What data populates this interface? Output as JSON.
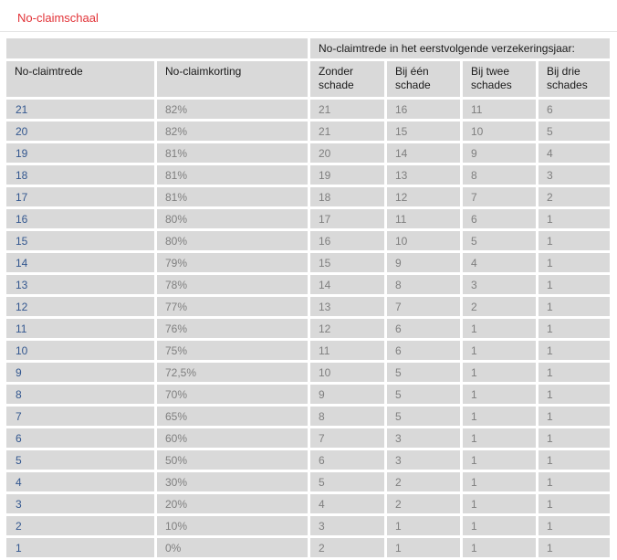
{
  "page": {
    "title": "No-claimschaal"
  },
  "colors": {
    "title_red": "#e23338",
    "trede_blue": "#33578f",
    "value_gray": "#7f7f7f",
    "header_text": "#1a1a1a",
    "cell_bg": "#d9d9d9"
  },
  "table": {
    "span_header": "No-claimtrede in het eerstvolgende verzekeringsjaar:",
    "columns": [
      "No-claimtrede",
      "No-claimkorting",
      "Zonder schade",
      "Bij één schade",
      "Bij twee schades",
      "Bij drie schades"
    ],
    "rows": [
      [
        "21",
        "82%",
        "21",
        "16",
        "11",
        "6"
      ],
      [
        "20",
        "82%",
        "21",
        "15",
        "10",
        "5"
      ],
      [
        "19",
        "81%",
        "20",
        "14",
        "9",
        "4"
      ],
      [
        "18",
        "81%",
        "19",
        "13",
        "8",
        "3"
      ],
      [
        "17",
        "81%",
        "18",
        "12",
        "7",
        "2"
      ],
      [
        "16",
        "80%",
        "17",
        "11",
        "6",
        "1"
      ],
      [
        "15",
        "80%",
        "16",
        "10",
        "5",
        "1"
      ],
      [
        "14",
        "79%",
        "15",
        "9",
        "4",
        "1"
      ],
      [
        "13",
        "78%",
        "14",
        "8",
        "3",
        "1"
      ],
      [
        "12",
        "77%",
        "13",
        "7",
        "2",
        "1"
      ],
      [
        "11",
        "76%",
        "12",
        "6",
        "1",
        "1"
      ],
      [
        "10",
        "75%",
        "11",
        "6",
        "1",
        "1"
      ],
      [
        "9",
        "72,5%",
        "10",
        "5",
        "1",
        "1"
      ],
      [
        "8",
        "70%",
        "9",
        "5",
        "1",
        "1"
      ],
      [
        "7",
        "65%",
        "8",
        "5",
        "1",
        "1"
      ],
      [
        "6",
        "60%",
        "7",
        "3",
        "1",
        "1"
      ],
      [
        "5",
        "50%",
        "6",
        "3",
        "1",
        "1"
      ],
      [
        "4",
        "30%",
        "5",
        "2",
        "1",
        "1"
      ],
      [
        "3",
        "20%",
        "4",
        "2",
        "1",
        "1"
      ],
      [
        "2",
        "10%",
        "3",
        "1",
        "1",
        "1"
      ],
      [
        "1",
        "0%",
        "2",
        "1",
        "1",
        "1"
      ]
    ]
  }
}
